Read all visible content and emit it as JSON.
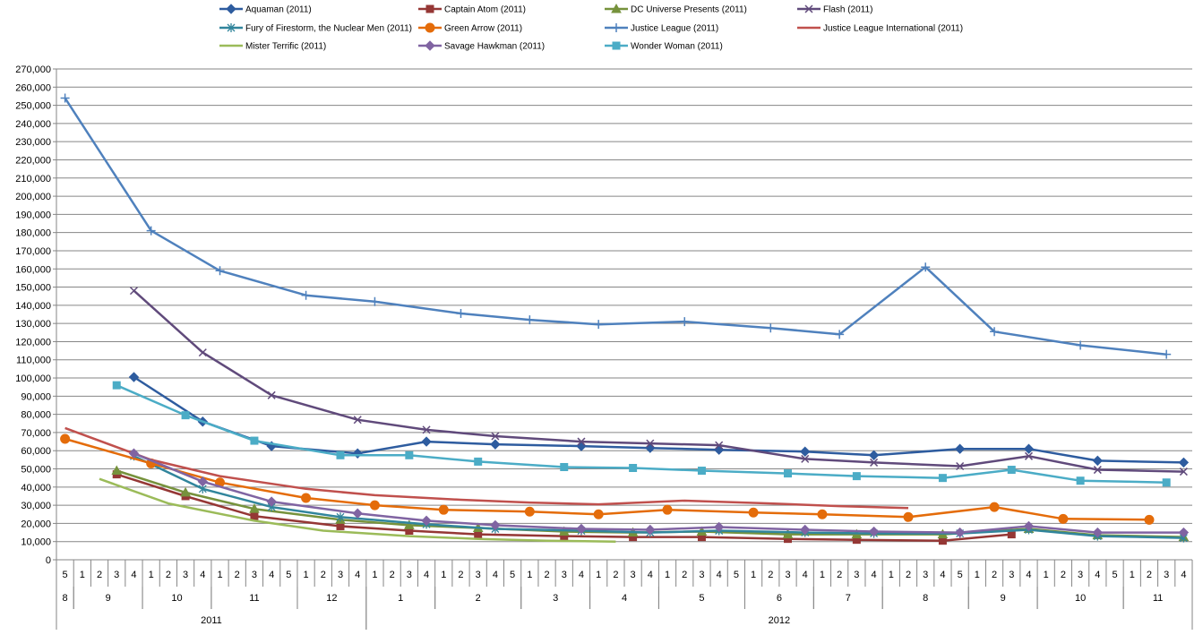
{
  "chart_data": {
    "type": "line",
    "title": "",
    "xlabel": "",
    "ylabel": "",
    "ylim": [
      0,
      270000
    ],
    "ytick_step": 10000,
    "yticks": [
      "0",
      "10,000",
      "20,000",
      "30,000",
      "40,000",
      "50,000",
      "60,000",
      "70,000",
      "80,000",
      "90,000",
      "100,000",
      "110,000",
      "120,000",
      "130,000",
      "140,000",
      "150,000",
      "160,000",
      "170,000",
      "180,000",
      "190,000",
      "200,000",
      "210,000",
      "220,000",
      "230,000",
      "240,000",
      "250,000",
      "260,000",
      "270,000"
    ],
    "grid": true,
    "legend_position": "top",
    "weeks": [
      {
        "label": "5",
        "month": "8",
        "year": "2011"
      },
      {
        "label": "1",
        "month": "9",
        "year": "2011"
      },
      {
        "label": "2",
        "month": "9",
        "year": "2011"
      },
      {
        "label": "3",
        "month": "9",
        "year": "2011"
      },
      {
        "label": "4",
        "month": "9",
        "year": "2011"
      },
      {
        "label": "1",
        "month": "10",
        "year": "2011"
      },
      {
        "label": "2",
        "month": "10",
        "year": "2011"
      },
      {
        "label": "3",
        "month": "10",
        "year": "2011"
      },
      {
        "label": "4",
        "month": "10",
        "year": "2011"
      },
      {
        "label": "1",
        "month": "11",
        "year": "2011"
      },
      {
        "label": "2",
        "month": "11",
        "year": "2011"
      },
      {
        "label": "3",
        "month": "11",
        "year": "2011"
      },
      {
        "label": "4",
        "month": "11",
        "year": "2011"
      },
      {
        "label": "5",
        "month": "11",
        "year": "2011"
      },
      {
        "label": "1",
        "month": "12",
        "year": "2011"
      },
      {
        "label": "2",
        "month": "12",
        "year": "2011"
      },
      {
        "label": "3",
        "month": "12",
        "year": "2011"
      },
      {
        "label": "4",
        "month": "12",
        "year": "2011"
      },
      {
        "label": "1",
        "month": "1",
        "year": "2012"
      },
      {
        "label": "2",
        "month": "1",
        "year": "2012"
      },
      {
        "label": "3",
        "month": "1",
        "year": "2012"
      },
      {
        "label": "4",
        "month": "1",
        "year": "2012"
      },
      {
        "label": "1",
        "month": "2",
        "year": "2012"
      },
      {
        "label": "2",
        "month": "2",
        "year": "2012"
      },
      {
        "label": "3",
        "month": "2",
        "year": "2012"
      },
      {
        "label": "4",
        "month": "2",
        "year": "2012"
      },
      {
        "label": "5",
        "month": "2",
        "year": "2012"
      },
      {
        "label": "1",
        "month": "3",
        "year": "2012"
      },
      {
        "label": "2",
        "month": "3",
        "year": "2012"
      },
      {
        "label": "3",
        "month": "3",
        "year": "2012"
      },
      {
        "label": "4",
        "month": "3",
        "year": "2012"
      },
      {
        "label": "1",
        "month": "4",
        "year": "2012"
      },
      {
        "label": "2",
        "month": "4",
        "year": "2012"
      },
      {
        "label": "3",
        "month": "4",
        "year": "2012"
      },
      {
        "label": "4",
        "month": "4",
        "year": "2012"
      },
      {
        "label": "1",
        "month": "5",
        "year": "2012"
      },
      {
        "label": "2",
        "month": "5",
        "year": "2012"
      },
      {
        "label": "3",
        "month": "5",
        "year": "2012"
      },
      {
        "label": "4",
        "month": "5",
        "year": "2012"
      },
      {
        "label": "5",
        "month": "5",
        "year": "2012"
      },
      {
        "label": "1",
        "month": "6",
        "year": "2012"
      },
      {
        "label": "2",
        "month": "6",
        "year": "2012"
      },
      {
        "label": "3",
        "month": "6",
        "year": "2012"
      },
      {
        "label": "4",
        "month": "6",
        "year": "2012"
      },
      {
        "label": "1",
        "month": "7",
        "year": "2012"
      },
      {
        "label": "2",
        "month": "7",
        "year": "2012"
      },
      {
        "label": "3",
        "month": "7",
        "year": "2012"
      },
      {
        "label": "4",
        "month": "7",
        "year": "2012"
      },
      {
        "label": "1",
        "month": "8",
        "year": "2012"
      },
      {
        "label": "2",
        "month": "8",
        "year": "2012"
      },
      {
        "label": "3",
        "month": "8",
        "year": "2012"
      },
      {
        "label": "4",
        "month": "8",
        "year": "2012"
      },
      {
        "label": "5",
        "month": "8",
        "year": "2012"
      },
      {
        "label": "1",
        "month": "9",
        "year": "2012"
      },
      {
        "label": "2",
        "month": "9",
        "year": "2012"
      },
      {
        "label": "3",
        "month": "9",
        "year": "2012"
      },
      {
        "label": "4",
        "month": "9",
        "year": "2012"
      },
      {
        "label": "1",
        "month": "10",
        "year": "2012"
      },
      {
        "label": "2",
        "month": "10",
        "year": "2012"
      },
      {
        "label": "3",
        "month": "10",
        "year": "2012"
      },
      {
        "label": "4",
        "month": "10",
        "year": "2012"
      },
      {
        "label": "5",
        "month": "10",
        "year": "2012"
      },
      {
        "label": "1",
        "month": "11",
        "year": "2012"
      },
      {
        "label": "2",
        "month": "11",
        "year": "2012"
      },
      {
        "label": "3",
        "month": "11",
        "year": "2012"
      },
      {
        "label": "4",
        "month": "11",
        "year": "2012"
      }
    ],
    "months": [
      {
        "label": "8",
        "start": 0,
        "end": 0
      },
      {
        "label": "9",
        "start": 1,
        "end": 4
      },
      {
        "label": "10",
        "start": 5,
        "end": 8
      },
      {
        "label": "11",
        "start": 9,
        "end": 13
      },
      {
        "label": "12",
        "start": 14,
        "end": 17
      },
      {
        "label": "1",
        "start": 18,
        "end": 21
      },
      {
        "label": "2",
        "start": 22,
        "end": 26
      },
      {
        "label": "3",
        "start": 27,
        "end": 30
      },
      {
        "label": "4",
        "start": 31,
        "end": 34
      },
      {
        "label": "5",
        "start": 35,
        "end": 39
      },
      {
        "label": "6",
        "start": 40,
        "end": 43
      },
      {
        "label": "7",
        "start": 44,
        "end": 47
      },
      {
        "label": "8",
        "start": 48,
        "end": 52
      },
      {
        "label": "9",
        "start": 53,
        "end": 56
      },
      {
        "label": "10",
        "start": 57,
        "end": 61
      },
      {
        "label": "11",
        "start": 62,
        "end": 65
      }
    ],
    "years": [
      {
        "label": "2011",
        "start": 0,
        "end": 17
      },
      {
        "label": "2012",
        "start": 18,
        "end": 65
      }
    ],
    "series": [
      {
        "name": "Aquaman (2011)",
        "color": "#2e5c9f",
        "marker": "diamond",
        "points": [
          [
            4,
            100500
          ],
          [
            8,
            76000
          ],
          [
            12,
            62500
          ],
          [
            17,
            58500
          ],
          [
            21,
            65000
          ],
          [
            25,
            63500
          ],
          [
            30,
            62500
          ],
          [
            34,
            61500
          ],
          [
            38,
            60500
          ],
          [
            43,
            59500
          ],
          [
            47,
            57500
          ],
          [
            52,
            61000
          ],
          [
            56,
            61000
          ],
          [
            60,
            54500
          ],
          [
            65,
            53500
          ]
        ]
      },
      {
        "name": "Captain Atom (2011)",
        "color": "#953735",
        "marker": "square",
        "points": [
          [
            3,
            47000
          ],
          [
            7,
            35000
          ],
          [
            11,
            24000
          ],
          [
            16,
            18500
          ],
          [
            20,
            16000
          ],
          [
            24,
            14000
          ],
          [
            29,
            13000
          ],
          [
            33,
            12500
          ],
          [
            37,
            12500
          ],
          [
            42,
            11500
          ],
          [
            46,
            11000
          ],
          [
            51,
            10500
          ],
          [
            55,
            14000
          ]
        ]
      },
      {
        "name": "DC Universe Presents (2011)",
        "color": "#76923c",
        "marker": "triangle",
        "points": [
          [
            3,
            49000
          ],
          [
            7,
            37000
          ],
          [
            11,
            28000
          ],
          [
            16,
            22000
          ],
          [
            20,
            19000
          ],
          [
            24,
            17500
          ],
          [
            29,
            15500
          ],
          [
            33,
            15000
          ],
          [
            37,
            15500
          ],
          [
            42,
            14000
          ],
          [
            46,
            14000
          ],
          [
            51,
            14000
          ],
          [
            56,
            17000
          ],
          [
            60,
            13500
          ],
          [
            65,
            12500
          ]
        ]
      },
      {
        "name": "Flash (2011)",
        "color": "#604a7b",
        "marker": "x",
        "points": [
          [
            4,
            148000
          ],
          [
            8,
            114000
          ],
          [
            12,
            90500
          ],
          [
            17,
            77000
          ],
          [
            21,
            71500
          ],
          [
            25,
            68000
          ],
          [
            30,
            65000
          ],
          [
            34,
            64000
          ],
          [
            38,
            63000
          ],
          [
            43,
            55500
          ],
          [
            47,
            53500
          ],
          [
            52,
            51500
          ],
          [
            56,
            57000
          ],
          [
            60,
            49500
          ],
          [
            65,
            48500
          ]
        ]
      },
      {
        "name": "Fury of Firestorm, the Nuclear Men (2011)",
        "color": "#31859c",
        "marker": "star",
        "points": [
          [
            4,
            57000
          ],
          [
            8,
            39000
          ],
          [
            12,
            29000
          ],
          [
            16,
            23500
          ],
          [
            21,
            19500
          ],
          [
            25,
            17000
          ],
          [
            30,
            16000
          ],
          [
            34,
            15000
          ],
          [
            38,
            16000
          ],
          [
            43,
            15000
          ],
          [
            47,
            14500
          ],
          [
            52,
            14500
          ],
          [
            56,
            16500
          ],
          [
            60,
            13000
          ],
          [
            65,
            12000
          ]
        ]
      },
      {
        "name": "Green Arrow (2011)",
        "color": "#e46c0a",
        "marker": "circle",
        "points": [
          [
            0,
            66500
          ],
          [
            5,
            53000
          ],
          [
            9,
            42500
          ],
          [
            14,
            34000
          ],
          [
            18,
            30000
          ],
          [
            22,
            27500
          ],
          [
            27,
            26500
          ],
          [
            31,
            25000
          ],
          [
            35,
            27500
          ],
          [
            40,
            26000
          ],
          [
            44,
            25000
          ],
          [
            49,
            23500
          ],
          [
            54,
            29000
          ],
          [
            58,
            22500
          ],
          [
            63,
            22000
          ]
        ]
      },
      {
        "name": "Justice League (2011)",
        "color": "#4f81bd",
        "marker": "plus",
        "points": [
          [
            0,
            254000
          ],
          [
            5,
            181000
          ],
          [
            9,
            159000
          ],
          [
            14,
            145500
          ],
          [
            18,
            142000
          ],
          [
            23,
            135500
          ],
          [
            27,
            132000
          ],
          [
            31,
            129500
          ],
          [
            36,
            131000
          ],
          [
            41,
            127500
          ],
          [
            45,
            124000
          ],
          [
            50,
            161000
          ],
          [
            54,
            125500
          ],
          [
            59,
            118000
          ],
          [
            64,
            113000
          ]
        ]
      },
      {
        "name": "Justice League International (2011)",
        "color": "#c0504d",
        "marker": "none",
        "points": [
          [
            0,
            72500
          ],
          [
            5,
            55000
          ],
          [
            9,
            46000
          ],
          [
            14,
            39000
          ],
          [
            18,
            35500
          ],
          [
            23,
            33000
          ],
          [
            27,
            31500
          ],
          [
            31,
            30500
          ],
          [
            36,
            32500
          ],
          [
            41,
            31000
          ],
          [
            45,
            29500
          ],
          [
            49,
            28500
          ]
        ]
      },
      {
        "name": "Mister Terrific (2011)",
        "color": "#9bbb59",
        "marker": "none",
        "points": [
          [
            2,
            44500
          ],
          [
            6,
            31000
          ],
          [
            11,
            21500
          ],
          [
            15,
            16000
          ],
          [
            20,
            13000
          ],
          [
            24,
            11500
          ],
          [
            28,
            10500
          ],
          [
            32,
            10000
          ]
        ]
      },
      {
        "name": "Savage Hawkman (2011)",
        "color": "#8064a2",
        "marker": "diamond",
        "points": [
          [
            4,
            58500
          ],
          [
            8,
            43000
          ],
          [
            12,
            32000
          ],
          [
            17,
            25500
          ],
          [
            21,
            21500
          ],
          [
            25,
            19000
          ],
          [
            30,
            17000
          ],
          [
            34,
            16500
          ],
          [
            38,
            18000
          ],
          [
            43,
            16500
          ],
          [
            47,
            15500
          ],
          [
            52,
            15000
          ],
          [
            56,
            18500
          ],
          [
            60,
            15000
          ],
          [
            65,
            15000
          ]
        ]
      },
      {
        "name": "Wonder Woman (2011)",
        "color": "#4bacc6",
        "marker": "square",
        "points": [
          [
            3,
            96000
          ],
          [
            7,
            79500
          ],
          [
            11,
            65500
          ],
          [
            16,
            57500
          ],
          [
            20,
            57500
          ],
          [
            24,
            54000
          ],
          [
            29,
            51000
          ],
          [
            33,
            50500
          ],
          [
            37,
            49000
          ],
          [
            42,
            47500
          ],
          [
            46,
            46000
          ],
          [
            51,
            45000
          ],
          [
            55,
            49500
          ],
          [
            59,
            43500
          ],
          [
            64,
            42500
          ]
        ]
      }
    ]
  }
}
